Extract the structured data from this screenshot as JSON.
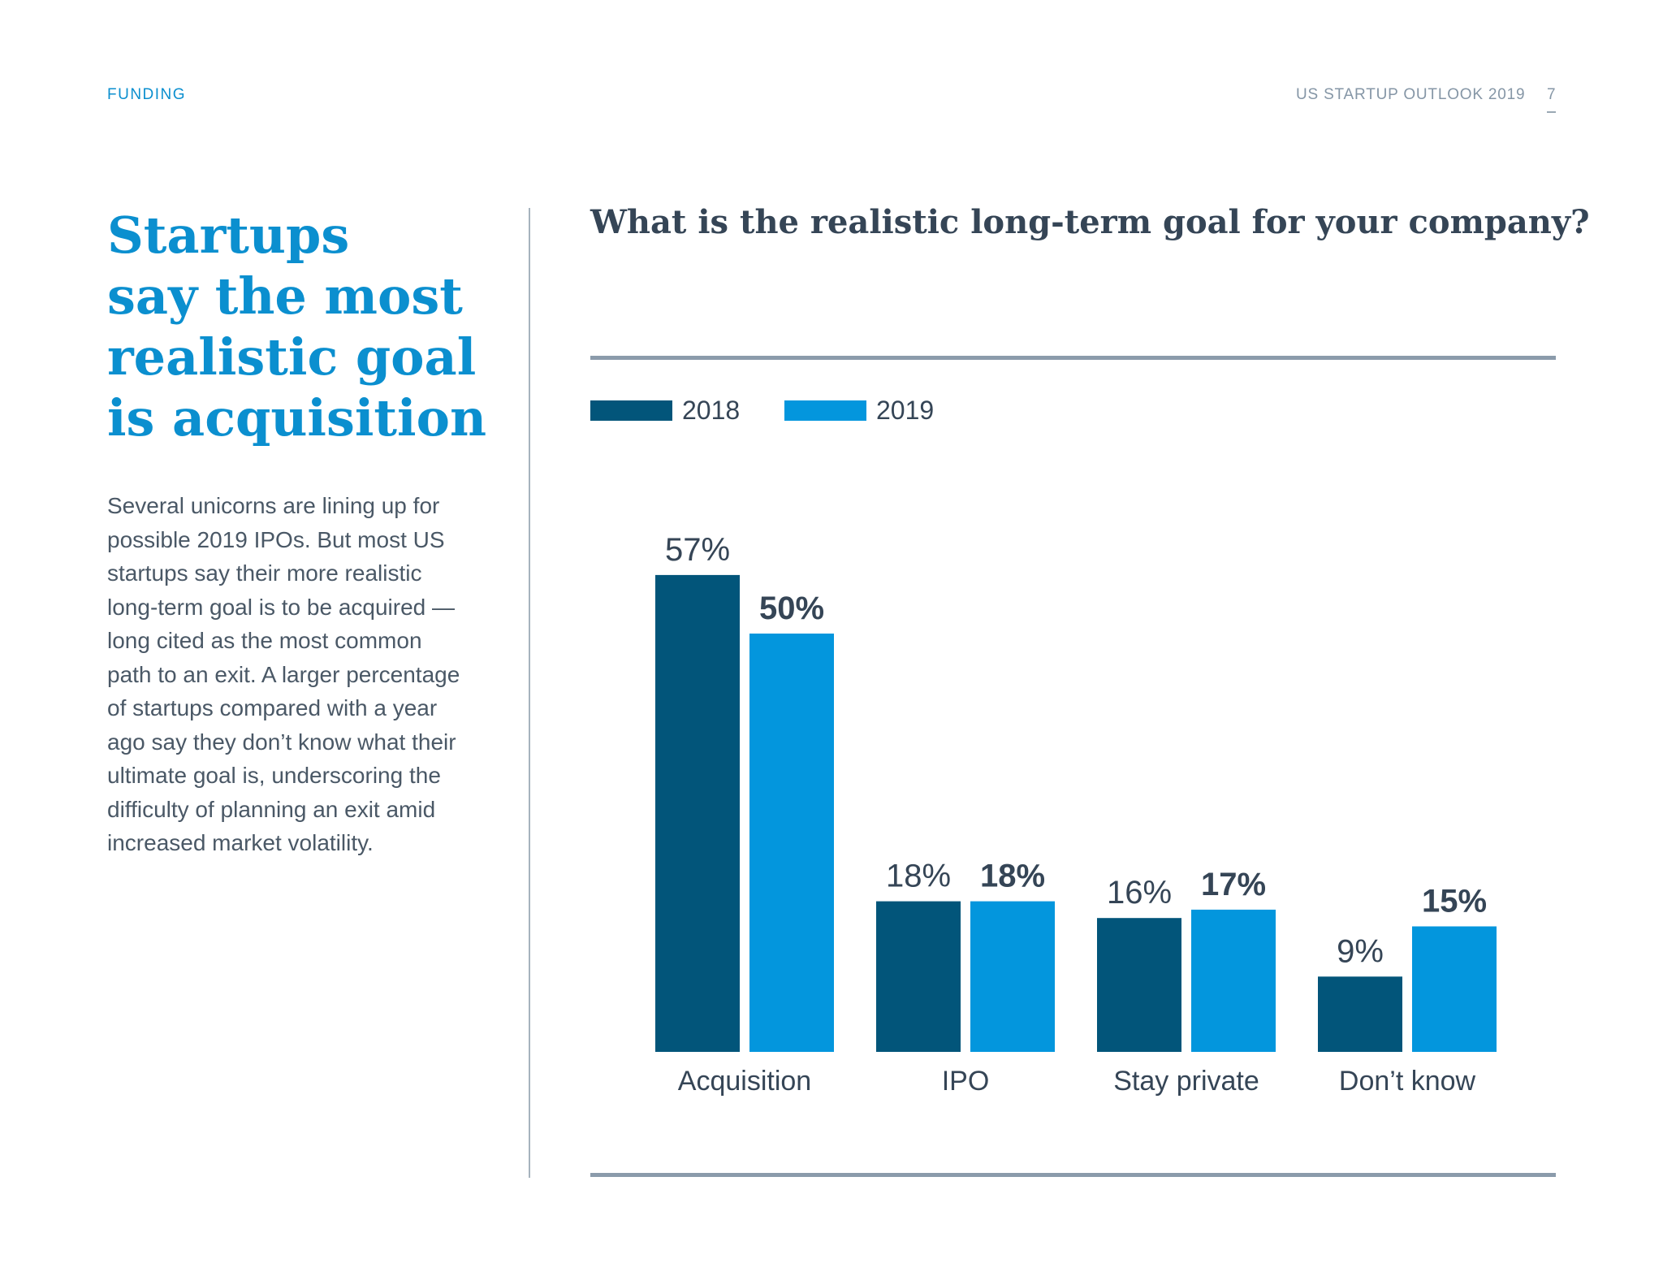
{
  "header": {
    "section": "FUNDING",
    "report_title": "US STARTUP OUTLOOK 2019",
    "page_number": "7"
  },
  "headline": [
    "Startups",
    "say the most",
    "realistic goal",
    "is acquisition"
  ],
  "body_text": [
    "Several unicorns are lining up for",
    "possible 2019 IPOs. But most US",
    "startups say their more realistic",
    "long-term goal is to be acquired —",
    "long cited as the most common",
    "path to an exit. A larger percentage",
    "of startups compared with a year",
    "ago say they don’t know what their",
    "ultimate goal is, underscoring the",
    "difficulty of planning an exit amid",
    "increased market volatility."
  ],
  "colors": {
    "series_2018": "#02557a",
    "series_2019": "#0396dd",
    "accent": "#0b8fcf"
  },
  "chart_data": {
    "type": "bar",
    "title": "What is the realistic long-term goal for your company?",
    "categories": [
      "Acquisition",
      "IPO",
      "Stay private",
      "Don’t know"
    ],
    "series": [
      {
        "name": "2018",
        "values": [
          57,
          18,
          16,
          9
        ],
        "labels": [
          "57%",
          "18%",
          "16%",
          "9%"
        ]
      },
      {
        "name": "2019",
        "values": [
          50,
          18,
          17,
          15
        ],
        "labels": [
          "50%",
          "18%",
          "17%",
          "15%"
        ]
      }
    ],
    "ylim": [
      0,
      100
    ],
    "legend": "top-left",
    "grid": false
  }
}
